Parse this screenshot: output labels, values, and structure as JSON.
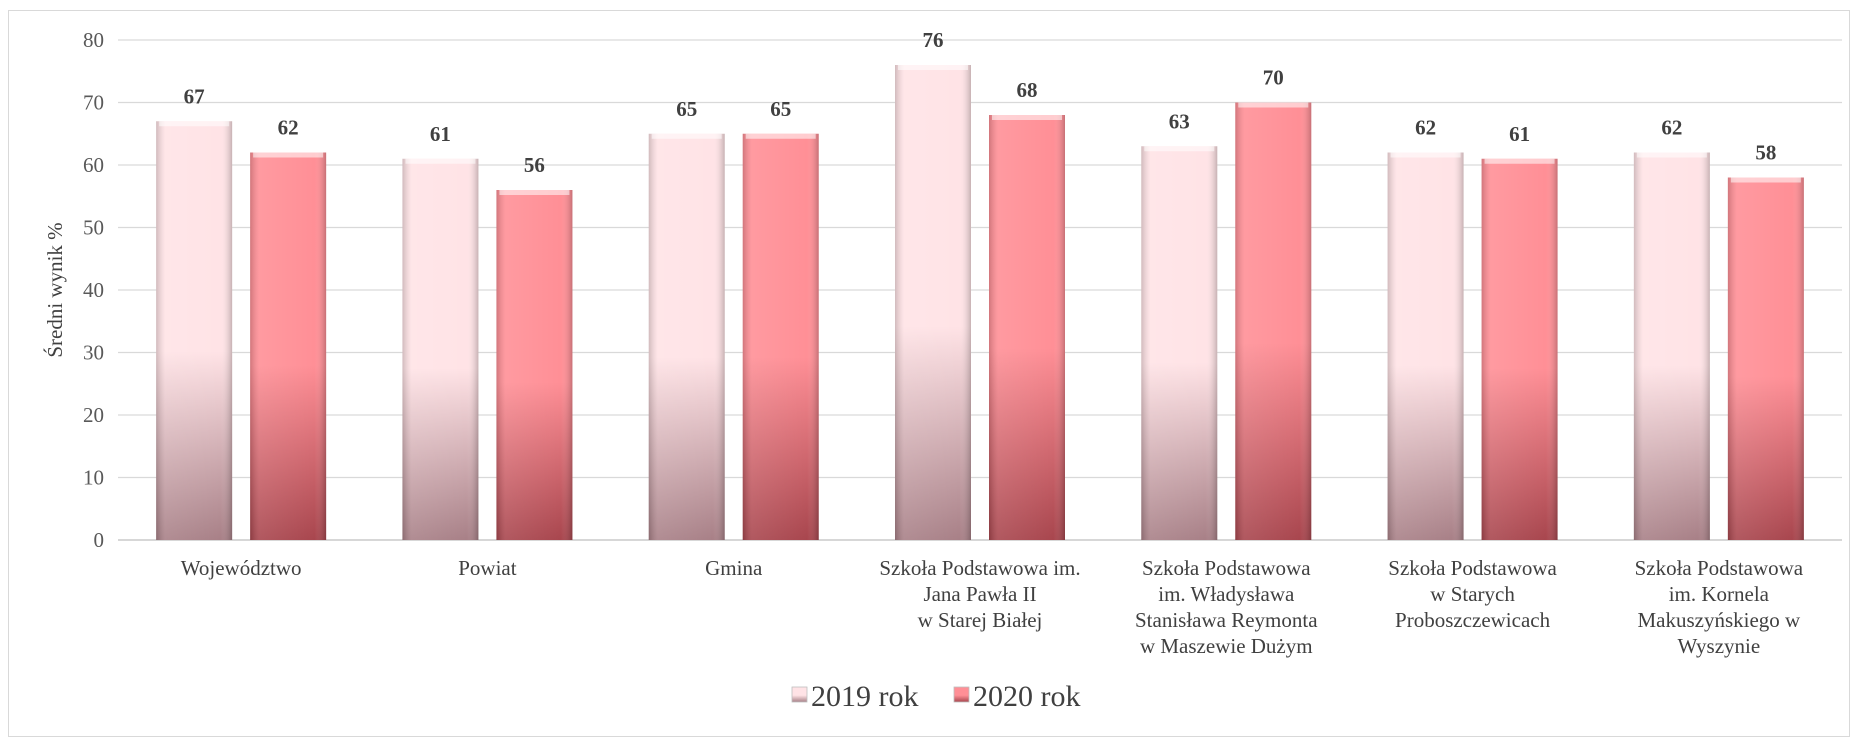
{
  "chart_data": {
    "type": "bar",
    "title": "",
    "xlabel": "",
    "ylabel": "Średni wynik %",
    "ylim": [
      0,
      80
    ],
    "yticks": [
      0,
      10,
      20,
      30,
      40,
      50,
      60,
      70,
      80
    ],
    "grid": true,
    "legend_position": "bottom",
    "categories": [
      [
        "Województwo"
      ],
      [
        "Powiat"
      ],
      [
        "Gmina"
      ],
      [
        "Szkoła Podstawowa im.",
        "Jana Pawła II",
        "w Starej Białej"
      ],
      [
        "Szkoła Podstawowa",
        "im. Władysława",
        "Stanisława Reymonta",
        "w Maszewie Dużym"
      ],
      [
        "Szkoła Podstawowa",
        "w Starych",
        "Proboszczewicach"
      ],
      [
        "Szkoła Podstawowa",
        "im. Kornela",
        "Makuszyńskiego w",
        "Wyszynie"
      ]
    ],
    "series": [
      {
        "name": "2019 rok",
        "values": [
          67,
          61,
          65,
          76,
          63,
          62,
          62
        ],
        "color_top": "#ffe3e6",
        "color_bottom": "#a88087"
      },
      {
        "name": "2020 rok",
        "values": [
          62,
          56,
          65,
          68,
          70,
          61,
          58
        ],
        "color_top": "#ff8f96",
        "color_bottom": "#a8464e"
      }
    ]
  }
}
